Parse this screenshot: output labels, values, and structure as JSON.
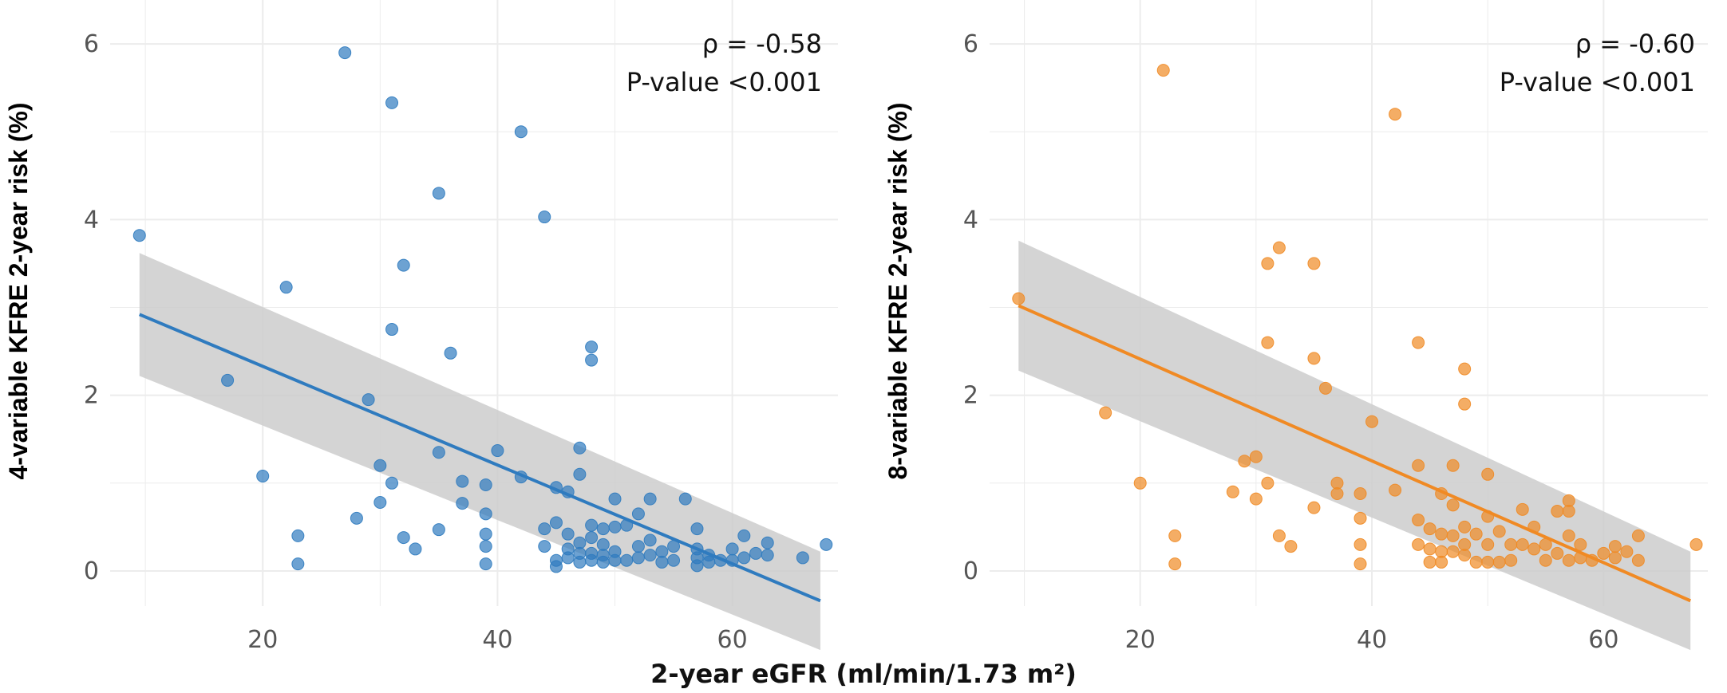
{
  "xlabel": "2-year eGFR (ml/min/1.73 m²)",
  "chart_data": [
    {
      "type": "scatter",
      "ylabel": "4-variable KFRE 2-year risk (%)",
      "rho_text": "ρ = -0.58",
      "p_text": "P-value <0.001",
      "color": "#2f7bbf",
      "xlim": [
        7,
        69
      ],
      "ylim": [
        -0.4,
        6.5
      ],
      "xticks": [
        20,
        40,
        60
      ],
      "yticks": [
        0,
        2,
        4,
        6
      ],
      "grid": true,
      "fit": {
        "x": [
          9.5,
          67.5
        ],
        "y": [
          2.92,
          -0.34
        ],
        "lower": [
          2.22,
          -0.9
        ],
        "upper": [
          3.62,
          0.22
        ],
        "ci_color": "#cccccc"
      },
      "points": [
        [
          9.5,
          3.82
        ],
        [
          17,
          2.17
        ],
        [
          20,
          1.08
        ],
        [
          22,
          3.23
        ],
        [
          23,
          0.4
        ],
        [
          23,
          0.08
        ],
        [
          27,
          5.9
        ],
        [
          28,
          0.6
        ],
        [
          29,
          1.95
        ],
        [
          30,
          1.2
        ],
        [
          30,
          0.78
        ],
        [
          31,
          5.33
        ],
        [
          31,
          2.75
        ],
        [
          31,
          1.0
        ],
        [
          32,
          3.48
        ],
        [
          32,
          0.38
        ],
        [
          33,
          0.25
        ],
        [
          35,
          4.3
        ],
        [
          35,
          1.35
        ],
        [
          35,
          0.47
        ],
        [
          36,
          2.48
        ],
        [
          37,
          1.02
        ],
        [
          37,
          0.77
        ],
        [
          39,
          0.98
        ],
        [
          39,
          0.65
        ],
        [
          39,
          0.42
        ],
        [
          39,
          0.28
        ],
        [
          39,
          0.08
        ],
        [
          40,
          1.37
        ],
        [
          42,
          5.0
        ],
        [
          42,
          1.07
        ],
        [
          44,
          4.03
        ],
        [
          44,
          0.48
        ],
        [
          44,
          0.28
        ],
        [
          45,
          0.95
        ],
        [
          45,
          0.55
        ],
        [
          45,
          0.12
        ],
        [
          45,
          0.05
        ],
        [
          46,
          0.9
        ],
        [
          46,
          0.42
        ],
        [
          46,
          0.25
        ],
        [
          46,
          0.15
        ],
        [
          47,
          1.4
        ],
        [
          47,
          1.1
        ],
        [
          47,
          0.32
        ],
        [
          47,
          0.2
        ],
        [
          47,
          0.1
        ],
        [
          48,
          2.55
        ],
        [
          48,
          2.4
        ],
        [
          48,
          0.52
        ],
        [
          48,
          0.38
        ],
        [
          48,
          0.2
        ],
        [
          48,
          0.12
        ],
        [
          49,
          0.48
        ],
        [
          49,
          0.3
        ],
        [
          49,
          0.18
        ],
        [
          49,
          0.1
        ],
        [
          50,
          0.82
        ],
        [
          50,
          0.5
        ],
        [
          50,
          0.22
        ],
        [
          50,
          0.12
        ],
        [
          51,
          0.52
        ],
        [
          51,
          0.12
        ],
        [
          52,
          0.65
        ],
        [
          52,
          0.28
        ],
        [
          52,
          0.15
        ],
        [
          53,
          0.82
        ],
        [
          53,
          0.35
        ],
        [
          53,
          0.18
        ],
        [
          54,
          0.22
        ],
        [
          54,
          0.1
        ],
        [
          55,
          0.28
        ],
        [
          55,
          0.12
        ],
        [
          56,
          0.82
        ],
        [
          57,
          0.48
        ],
        [
          57,
          0.25
        ],
        [
          57,
          0.15
        ],
        [
          57,
          0.06
        ],
        [
          58,
          0.18
        ],
        [
          58,
          0.1
        ],
        [
          59,
          0.12
        ],
        [
          60,
          0.25
        ],
        [
          60,
          0.12
        ],
        [
          61,
          0.4
        ],
        [
          61,
          0.15
        ],
        [
          62,
          0.2
        ],
        [
          63,
          0.32
        ],
        [
          63,
          0.18
        ],
        [
          66,
          0.15
        ],
        [
          68,
          0.3
        ]
      ]
    },
    {
      "type": "scatter",
      "ylabel": "8-variable KFRE 2-year risk (%)",
      "rho_text": "ρ = -0.60",
      "p_text": "P-value <0.001",
      "color": "#f08a24",
      "xlim": [
        7,
        69
      ],
      "ylim": [
        -0.4,
        6.5
      ],
      "xticks": [
        20,
        40,
        60
      ],
      "yticks": [
        0,
        2,
        4,
        6
      ],
      "grid": true,
      "fit": {
        "x": [
          9.5,
          67.5
        ],
        "y": [
          3.02,
          -0.34
        ],
        "lower": [
          2.28,
          -0.9
        ],
        "upper": [
          3.76,
          0.22
        ],
        "ci_color": "#cccccc"
      },
      "points": [
        [
          9.5,
          3.1
        ],
        [
          17,
          1.8
        ],
        [
          20,
          1.0
        ],
        [
          22,
          5.7
        ],
        [
          23,
          0.4
        ],
        [
          23,
          0.08
        ],
        [
          28,
          0.9
        ],
        [
          29,
          1.25
        ],
        [
          30,
          1.3
        ],
        [
          30,
          0.82
        ],
        [
          31,
          3.5
        ],
        [
          31,
          2.6
        ],
        [
          31,
          1.0
        ],
        [
          32,
          3.68
        ],
        [
          32,
          0.4
        ],
        [
          33,
          0.28
        ],
        [
          35,
          3.5
        ],
        [
          35,
          2.42
        ],
        [
          35,
          0.72
        ],
        [
          36,
          2.08
        ],
        [
          37,
          1.0
        ],
        [
          37,
          0.88
        ],
        [
          39,
          0.88
        ],
        [
          39,
          0.6
        ],
        [
          39,
          0.3
        ],
        [
          39,
          0.08
        ],
        [
          40,
          1.7
        ],
        [
          42,
          5.2
        ],
        [
          42,
          0.92
        ],
        [
          44,
          2.6
        ],
        [
          44,
          1.2
        ],
        [
          44,
          0.58
        ],
        [
          44,
          0.3
        ],
        [
          45,
          0.48
        ],
        [
          45,
          0.25
        ],
        [
          45,
          0.1
        ],
        [
          46,
          0.88
        ],
        [
          46,
          0.42
        ],
        [
          46,
          0.22
        ],
        [
          46,
          0.1
        ],
        [
          47,
          1.2
        ],
        [
          47,
          0.75
        ],
        [
          47,
          0.4
        ],
        [
          47,
          0.22
        ],
        [
          48,
          2.3
        ],
        [
          48,
          1.9
        ],
        [
          48,
          0.5
        ],
        [
          48,
          0.3
        ],
        [
          48,
          0.18
        ],
        [
          49,
          0.42
        ],
        [
          49,
          0.1
        ],
        [
          50,
          1.1
        ],
        [
          50,
          0.62
        ],
        [
          50,
          0.3
        ],
        [
          50,
          0.1
        ],
        [
          51,
          0.45
        ],
        [
          51,
          0.1
        ],
        [
          52,
          0.3
        ],
        [
          52,
          0.12
        ],
        [
          53,
          0.7
        ],
        [
          53,
          0.3
        ],
        [
          54,
          0.5
        ],
        [
          54,
          0.25
        ],
        [
          55,
          0.3
        ],
        [
          55,
          0.12
        ],
        [
          56,
          0.68
        ],
        [
          56,
          0.2
        ],
        [
          57,
          0.8
        ],
        [
          57,
          0.68
        ],
        [
          57,
          0.4
        ],
        [
          57,
          0.12
        ],
        [
          58,
          0.3
        ],
        [
          58,
          0.15
        ],
        [
          59,
          0.12
        ],
        [
          60,
          0.2
        ],
        [
          61,
          0.28
        ],
        [
          61,
          0.15
        ],
        [
          62,
          0.22
        ],
        [
          63,
          0.12
        ],
        [
          63,
          0.4
        ],
        [
          68,
          0.3
        ]
      ]
    }
  ]
}
